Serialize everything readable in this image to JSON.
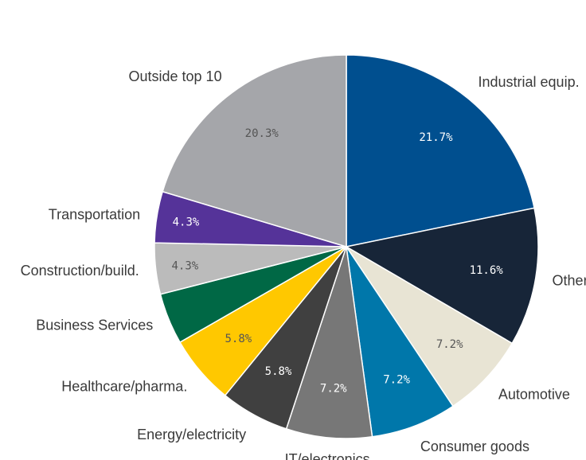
{
  "chart_data": {
    "type": "pie",
    "title": "",
    "start_angle_deg": 0,
    "direction": "clockwise",
    "slices": [
      {
        "label": "Industrial equip.",
        "value": 21.7,
        "value_label": "21.7%",
        "color": "#004f8f",
        "value_text_color": "#ffffff"
      },
      {
        "label": "Other",
        "value": 11.6,
        "value_label": "11.6%",
        "color": "#172538",
        "value_text_color": "#ffffff"
      },
      {
        "label": "Automotive",
        "value": 7.2,
        "value_label": "7.2%",
        "color": "#e8e4d4",
        "value_text_color": "#555555"
      },
      {
        "label": "Consumer goods",
        "value": 7.2,
        "value_label": "7.2%",
        "color": "#0077aa",
        "value_text_color": "#ffffff"
      },
      {
        "label": "IT/electronics",
        "value": 7.2,
        "value_label": "7.2%",
        "color": "#777777",
        "value_text_color": "#ffffff"
      },
      {
        "label": "Energy/electricity",
        "value": 5.8,
        "value_label": "5.8%",
        "color": "#404040",
        "value_text_color": "#ffffff"
      },
      {
        "label": "Healthcare/pharma.",
        "value": 5.8,
        "value_label": "5.8%",
        "color": "#ffc800",
        "value_text_color": "#555555"
      },
      {
        "label": "Business Services",
        "value": 4.3,
        "value_label": "",
        "color": "#006845",
        "value_text_color": "#ffffff"
      },
      {
        "label": "Construction/build.",
        "value": 4.3,
        "value_label": "4.3%",
        "color": "#bbbbbb",
        "value_text_color": "#555555"
      },
      {
        "label": "Transportation",
        "value": 4.3,
        "value_label": "4.3%",
        "color": "#553399",
        "value_text_color": "#ffffff"
      },
      {
        "label": "Outside top 10",
        "value": 20.3,
        "value_label": "20.3%",
        "color": "#a5a6aa",
        "value_text_color": "#555555"
      }
    ]
  }
}
